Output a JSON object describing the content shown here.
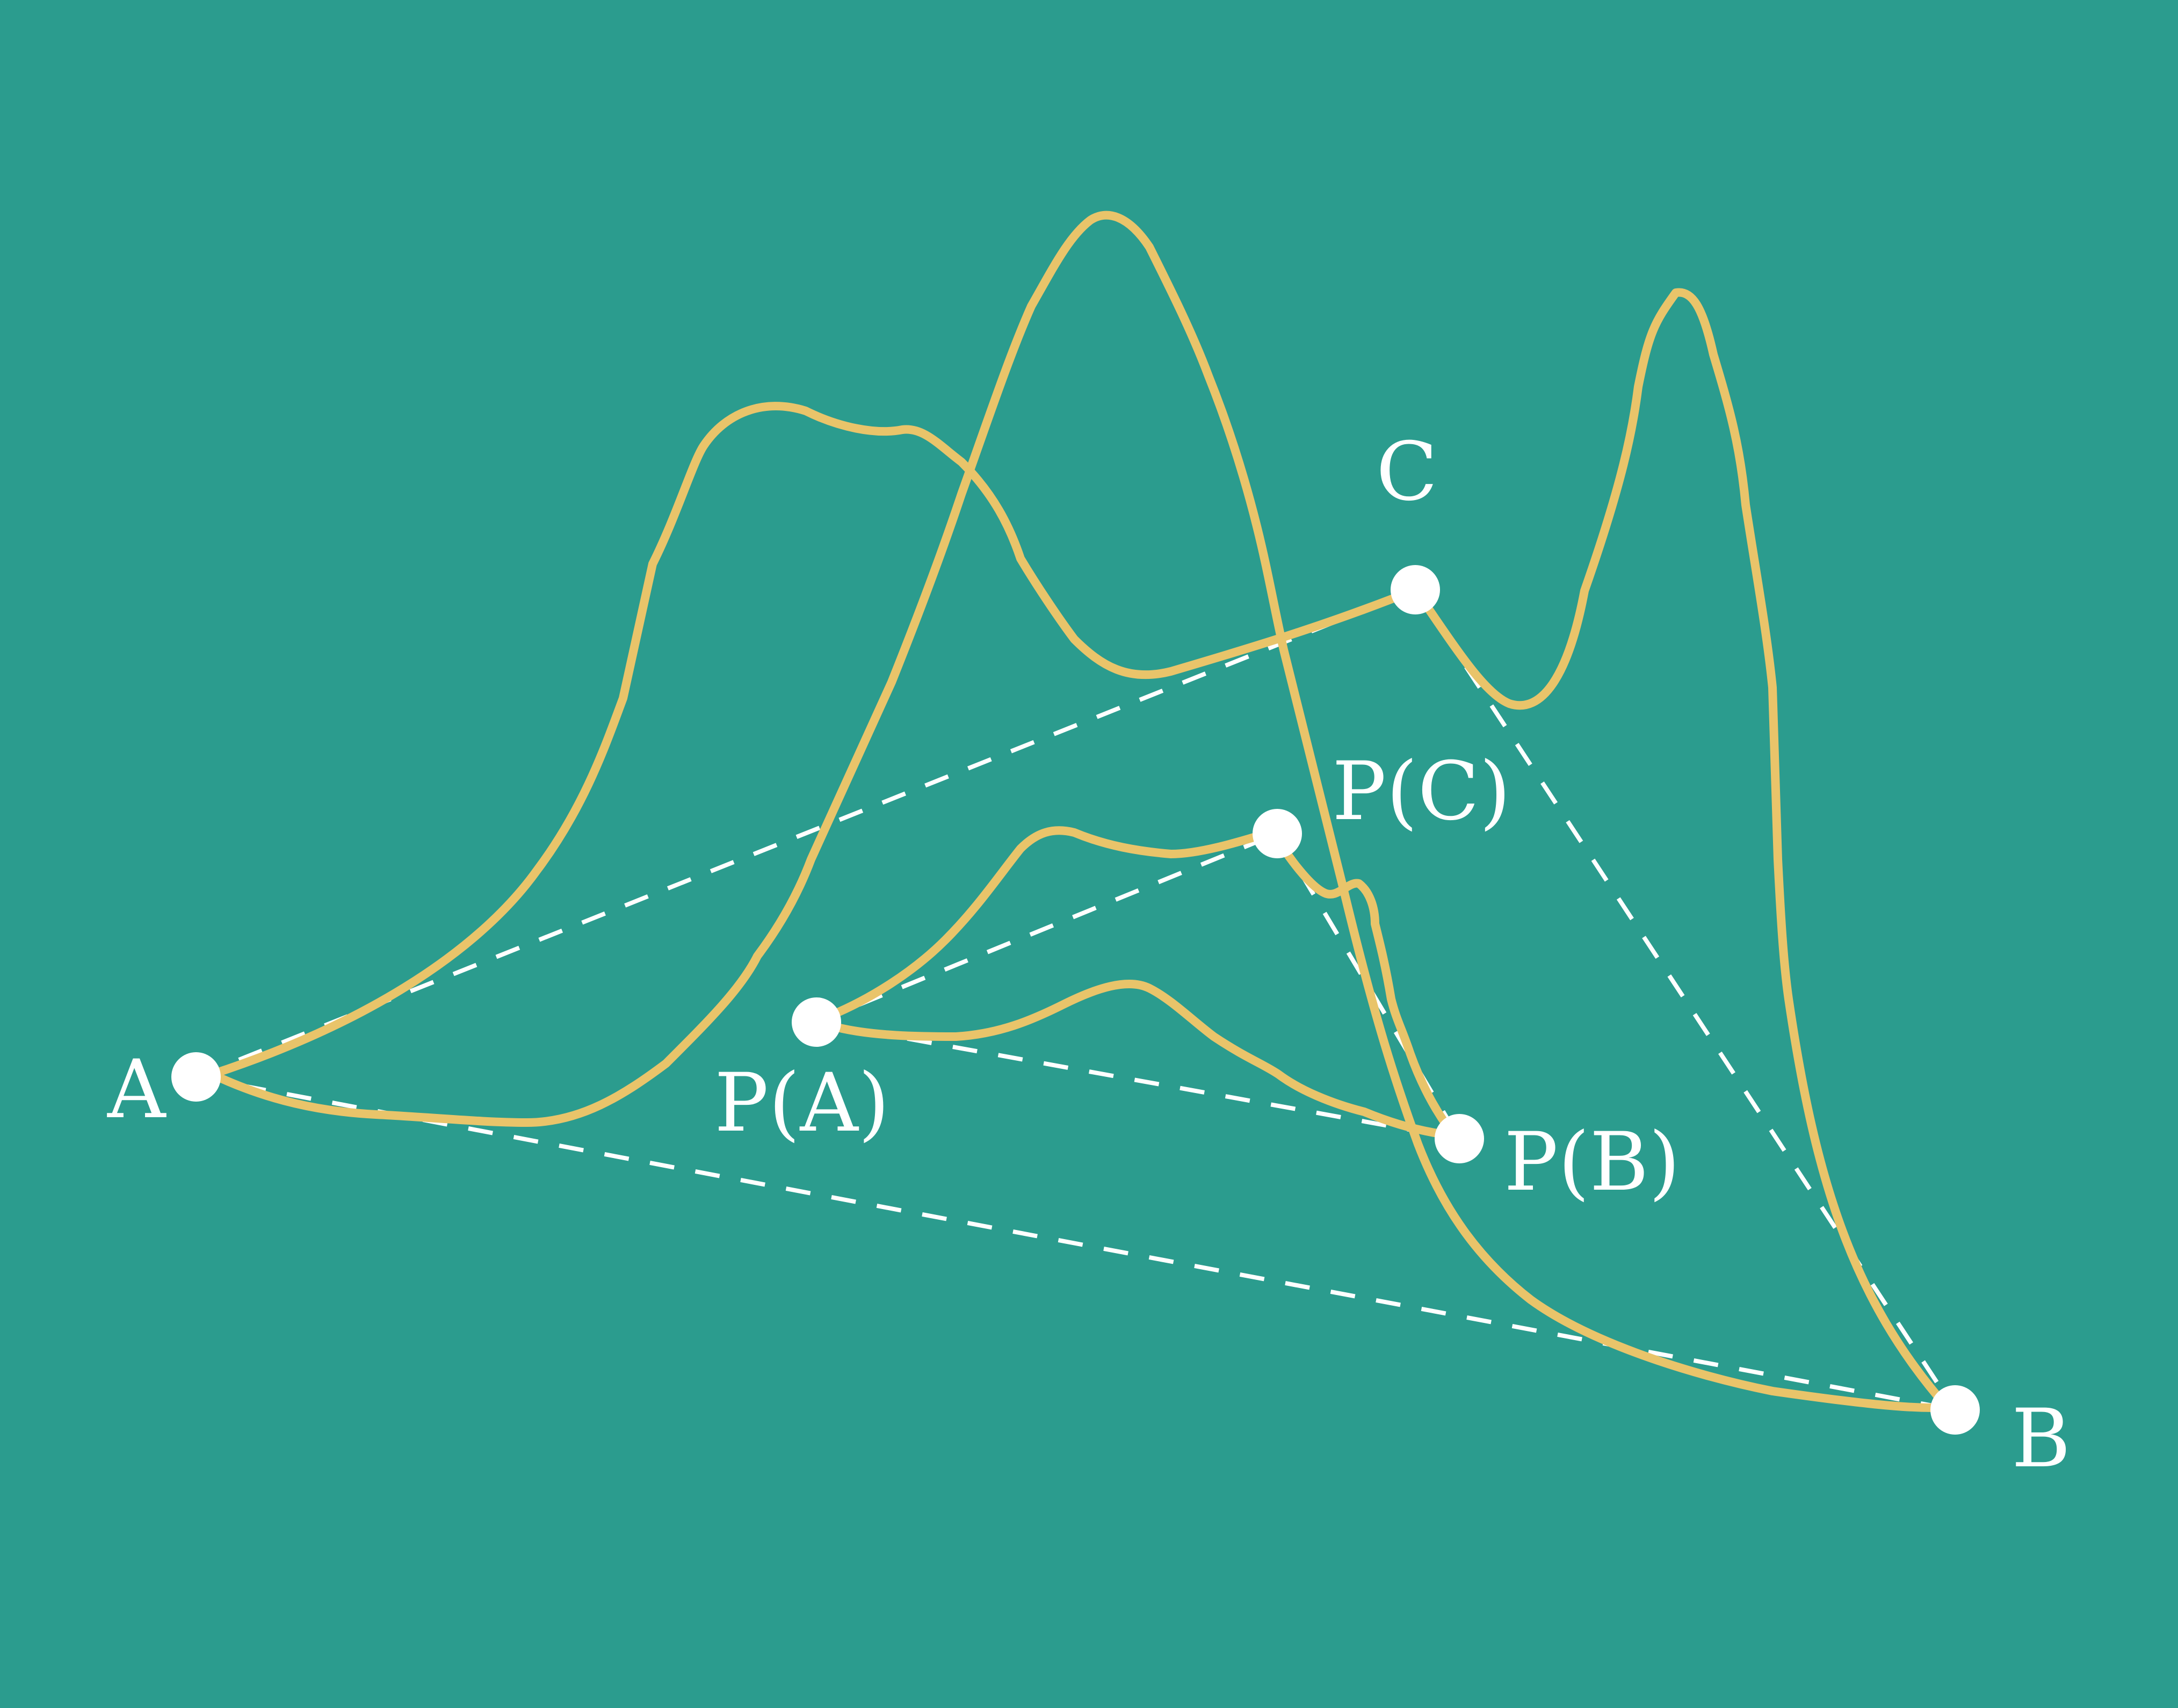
{
  "colors": {
    "background": "#2B9C8E",
    "curve": "#E9C46A",
    "points": "#FFFFFF",
    "dashed_lines": "#FFFFFF"
  },
  "labels": {
    "a": "A",
    "b": "B",
    "c": "C",
    "pa": "P(A)",
    "pb": "P(B)",
    "pc": "P(C)"
  }
}
